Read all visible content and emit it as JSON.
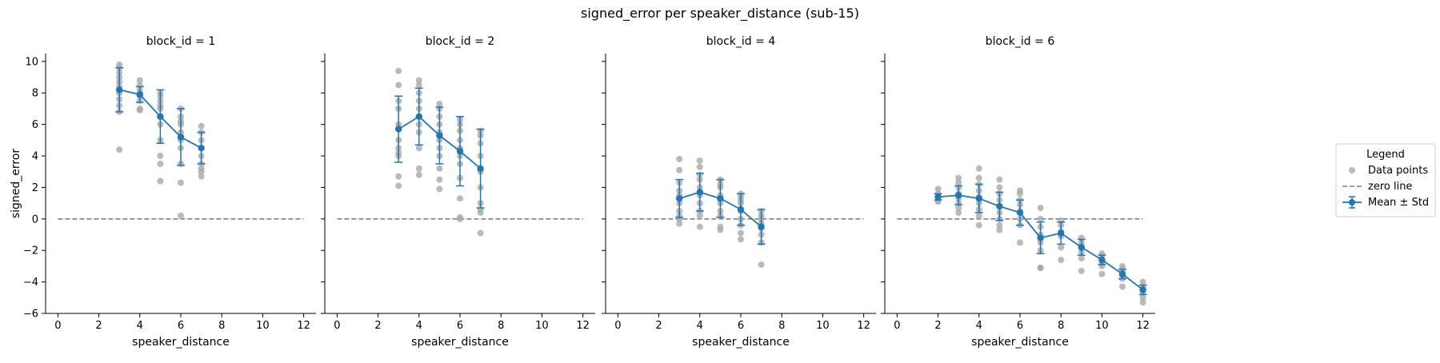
{
  "chart_data": {
    "type": "scatter",
    "title": "signed_error per speaker_distance (sub-15)",
    "xlabel": "speaker_distance",
    "ylabel": "signed_error",
    "xlim": [
      -0.6,
      12.6
    ],
    "ylim": [
      -6,
      10.5
    ],
    "xticks": [
      0,
      2,
      4,
      6,
      8,
      10,
      12
    ],
    "yticks": [
      -6,
      -4,
      -2,
      0,
      2,
      4,
      6,
      8,
      10
    ],
    "zero_line": 0,
    "grid": false,
    "legend": {
      "title": "Legend",
      "placement": "outside-right",
      "entries": [
        "Data points",
        "zero line",
        "Mean ± Std"
      ]
    },
    "colors": {
      "points": "#a9a9a9",
      "mean": "#1f77b4",
      "zero": "#808080"
    },
    "panels": [
      {
        "title": "block_id = 1",
        "mean": [
          {
            "x": 3,
            "y": 8.2,
            "std": 1.4
          },
          {
            "x": 4,
            "y": 7.9,
            "std": 0.5
          },
          {
            "x": 5,
            "y": 6.5,
            "std": 1.7
          },
          {
            "x": 6,
            "y": 5.2,
            "std": 1.8
          },
          {
            "x": 7,
            "y": 4.5,
            "std": 1.0
          }
        ],
        "points": [
          {
            "x": 3,
            "y": [
              9.8,
              9.6,
              9.3,
              9.0,
              8.7,
              8.4,
              8.0,
              7.6,
              7.2,
              6.8,
              4.4
            ]
          },
          {
            "x": 4,
            "y": [
              8.8,
              8.5,
              8.2,
              8.0,
              7.8,
              7.5,
              7.0,
              6.9
            ]
          },
          {
            "x": 5,
            "y": [
              8.0,
              7.8,
              7.5,
              7.2,
              7.0,
              6.5,
              6.0,
              5.0,
              4.0,
              3.5,
              2.4
            ]
          },
          {
            "x": 6,
            "y": [
              7.0,
              6.5,
              6.2,
              6.0,
              5.5,
              5.0,
              4.5,
              3.5,
              2.3,
              0.2
            ]
          },
          {
            "x": 7,
            "y": [
              5.9,
              5.5,
              5.0,
              4.5,
              4.0,
              3.5,
              3.2,
              3.0,
              2.7
            ]
          }
        ]
      },
      {
        "title": "block_id = 2",
        "mean": [
          {
            "x": 3,
            "y": 5.7,
            "std": 2.1
          },
          {
            "x": 4,
            "y": 6.5,
            "std": 1.8
          },
          {
            "x": 5,
            "y": 5.3,
            "std": 1.8
          },
          {
            "x": 6,
            "y": 4.3,
            "std": 2.2
          },
          {
            "x": 7,
            "y": 3.2,
            "std": 2.5
          }
        ],
        "points": [
          {
            "x": 3,
            "y": [
              9.4,
              8.5,
              7.5,
              7.0,
              6.0,
              5.0,
              4.5,
              4.2,
              4.0,
              2.7,
              2.1
            ]
          },
          {
            "x": 4,
            "y": [
              8.8,
              8.5,
              8.0,
              7.5,
              7.0,
              6.5,
              6.0,
              5.5,
              4.5,
              3.2,
              2.8
            ]
          },
          {
            "x": 5,
            "y": [
              7.3,
              7.0,
              6.5,
              6.0,
              5.5,
              5.0,
              4.5,
              4.0,
              3.2,
              2.5,
              1.9
            ]
          },
          {
            "x": 6,
            "y": [
              6.3,
              6.0,
              5.6,
              5.0,
              4.5,
              4.0,
              3.5,
              2.6,
              1.3,
              0.1,
              0.0
            ]
          },
          {
            "x": 7,
            "y": [
              5.6,
              5.3,
              4.8,
              4.0,
              3.0,
              2.0,
              1.0,
              0.6,
              0.4,
              -0.9
            ]
          }
        ]
      },
      {
        "title": "block_id = 4",
        "mean": [
          {
            "x": 3,
            "y": 1.3,
            "std": 1.2
          },
          {
            "x": 4,
            "y": 1.7,
            "std": 1.2
          },
          {
            "x": 5,
            "y": 1.3,
            "std": 1.2
          },
          {
            "x": 6,
            "y": 0.6,
            "std": 1.0
          },
          {
            "x": 7,
            "y": -0.5,
            "std": 1.1
          }
        ],
        "points": [
          {
            "x": 3,
            "y": [
              3.8,
              3.1,
              2.3,
              1.8,
              1.5,
              1.0,
              0.5,
              0.2,
              0.0,
              -0.3
            ]
          },
          {
            "x": 4,
            "y": [
              3.7,
              3.3,
              2.8,
              2.5,
              2.0,
              1.5,
              1.0,
              0.5,
              0.2,
              -0.5
            ]
          },
          {
            "x": 5,
            "y": [
              2.5,
              2.2,
              2.0,
              1.5,
              1.0,
              0.5,
              0.2,
              -0.5,
              -0.7
            ]
          },
          {
            "x": 6,
            "y": [
              1.6,
              1.4,
              1.2,
              1.0,
              0.5,
              0.0,
              -0.4,
              -0.9,
              -1.3
            ]
          },
          {
            "x": 7,
            "y": [
              0.5,
              0.2,
              0.0,
              -0.3,
              -0.6,
              -1.0,
              -1.5,
              -2.9
            ]
          }
        ]
      },
      {
        "title": "block_id = 6",
        "mean": [
          {
            "x": 2,
            "y": 1.4,
            "std": 0.2
          },
          {
            "x": 3,
            "y": 1.5,
            "std": 0.6
          },
          {
            "x": 4,
            "y": 1.3,
            "std": 0.9
          },
          {
            "x": 5,
            "y": 0.8,
            "std": 0.9
          },
          {
            "x": 6,
            "y": 0.4,
            "std": 0.8
          },
          {
            "x": 7,
            "y": -1.2,
            "std": 1.0
          },
          {
            "x": 8,
            "y": -0.9,
            "std": 0.7
          },
          {
            "x": 9,
            "y": -1.8,
            "std": 0.5
          },
          {
            "x": 10,
            "y": -2.6,
            "std": 0.3
          },
          {
            "x": 11,
            "y": -3.5,
            "std": 0.3
          },
          {
            "x": 12,
            "y": -4.5,
            "std": 0.3
          }
        ],
        "points": [
          {
            "x": 2,
            "y": [
              1.9,
              1.6,
              1.4,
              1.2,
              1.1
            ]
          },
          {
            "x": 3,
            "y": [
              2.6,
              2.3,
              2.0,
              1.6,
              1.3,
              1.0,
              0.7,
              0.4
            ]
          },
          {
            "x": 4,
            "y": [
              3.2,
              2.6,
              2.2,
              1.8,
              1.4,
              1.0,
              0.6,
              0.2,
              -0.4
            ]
          },
          {
            "x": 5,
            "y": [
              2.5,
              2.0,
              1.6,
              1.2,
              0.8,
              0.4,
              0.0,
              -0.4,
              -0.7
            ]
          },
          {
            "x": 6,
            "y": [
              1.8,
              1.6,
              1.2,
              0.9,
              0.5,
              0.0,
              -0.4,
              -1.5
            ]
          },
          {
            "x": 7,
            "y": [
              0.7,
              0.0,
              -0.5,
              -1.0,
              -1.5,
              -2.0,
              -3.1,
              -3.1
            ]
          },
          {
            "x": 8,
            "y": [
              -0.1,
              -0.4,
              -0.8,
              -1.1,
              -1.8,
              -2.6
            ]
          },
          {
            "x": 9,
            "y": [
              -1.2,
              -1.5,
              -1.8,
              -2.1,
              -2.5,
              -3.3
            ]
          },
          {
            "x": 10,
            "y": [
              -2.2,
              -2.4,
              -2.6,
              -2.8,
              -3.0,
              -3.5
            ]
          },
          {
            "x": 11,
            "y": [
              -3.0,
              -3.2,
              -3.4,
              -3.6,
              -3.8,
              -4.3
            ]
          },
          {
            "x": 12,
            "y": [
              -4.0,
              -4.3,
              -4.5,
              -4.7,
              -5.0,
              -5.3
            ]
          }
        ]
      }
    ]
  }
}
